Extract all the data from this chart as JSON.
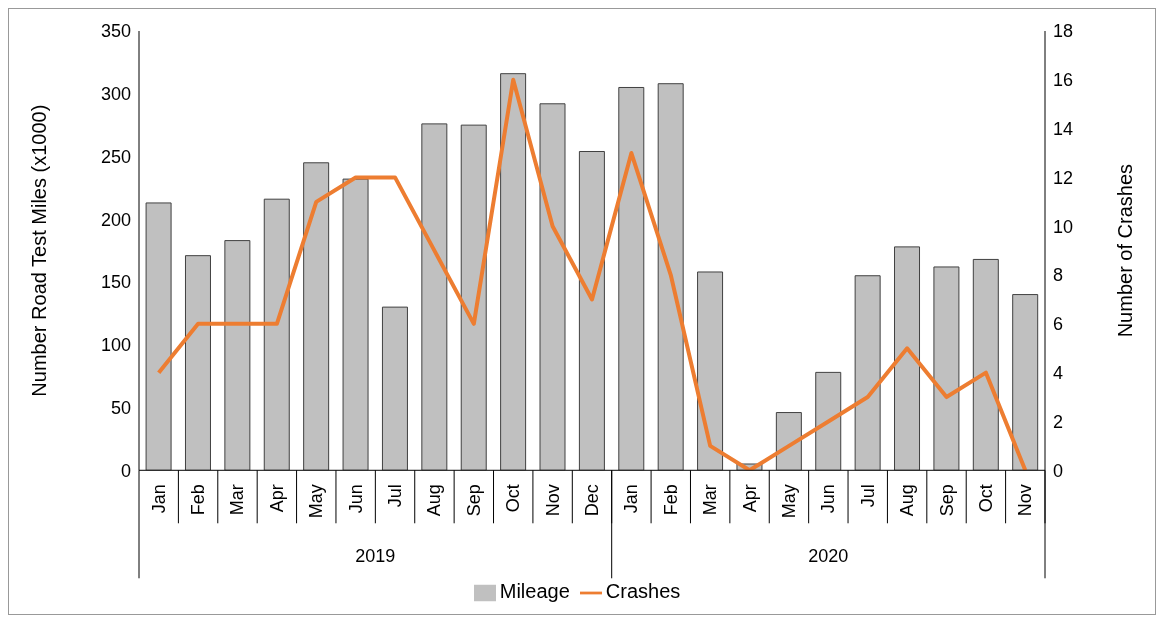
{
  "chart_data": {
    "type": "bar",
    "categories": [
      "Jan",
      "Feb",
      "Mar",
      "Apr",
      "May",
      "Jun",
      "Jul",
      "Aug",
      "Sep",
      "Oct",
      "Nov",
      "Dec",
      "Jan",
      "Feb",
      "Mar",
      "Apr",
      "May",
      "Jun",
      "Jul",
      "Aug",
      "Sep",
      "Oct",
      "Nov"
    ],
    "series": [
      {
        "name": "Mileage",
        "color": "#c0c0c0",
        "values": [
          213,
          171,
          183,
          216,
          245,
          232,
          130,
          276,
          275,
          316,
          292,
          254,
          305,
          308,
          158,
          5,
          46,
          78,
          155,
          178,
          162,
          168,
          140
        ]
      },
      {
        "name": "Crashes",
        "type": "line",
        "axis": "y2",
        "color": "#ed7d31",
        "values": [
          4,
          6,
          6,
          6,
          11,
          12,
          12,
          9,
          6,
          16,
          10,
          7,
          13,
          8,
          1,
          0,
          1,
          2,
          3,
          5,
          3,
          4,
          0
        ]
      }
    ],
    "ylabel": "Number Road Test Miles (x1000)",
    "y2label": "Number of Crashes",
    "ylim": [
      0,
      350
    ],
    "yticks": [
      0,
      50,
      100,
      150,
      200,
      250,
      300,
      350
    ],
    "y2lim": [
      0,
      18
    ],
    "y2ticks": [
      0,
      2,
      4,
      6,
      8,
      10,
      12,
      14,
      16,
      18
    ],
    "annotations": [
      "2019",
      "2020"
    ],
    "legend": "bottom",
    "marker": "none",
    "line_style": "solid"
  }
}
